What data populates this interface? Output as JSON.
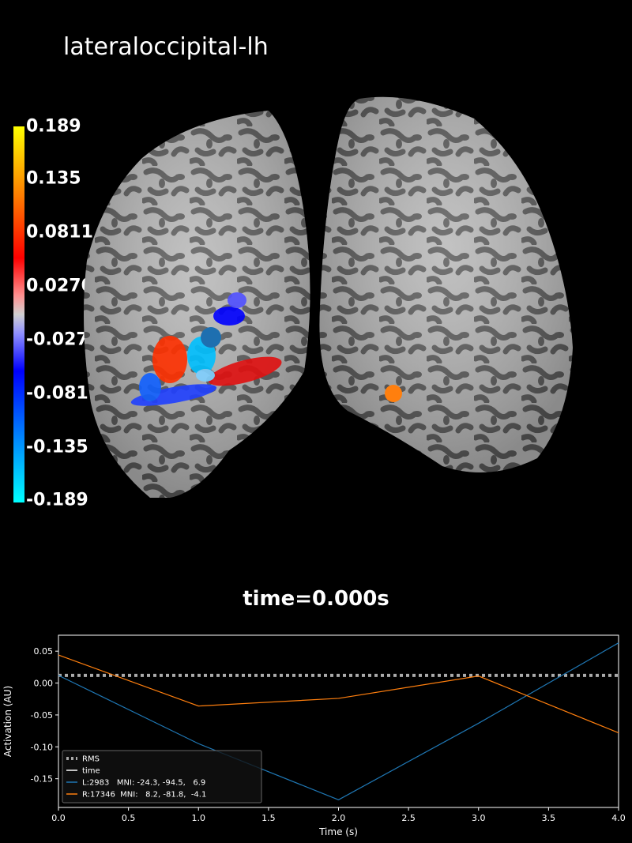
{
  "header": {
    "title": "lateraloccipital-lh"
  },
  "colorbar": {
    "ticks": [
      "0.189",
      "0.135",
      "0.0811",
      "0.0270",
      "-0.0270",
      "-0.0811",
      "-0.135",
      "-0.189"
    ]
  },
  "viewer": {
    "time_label": "time=0.000s"
  },
  "chart_data": {
    "type": "line",
    "xlabel": "Time (s)",
    "ylabel": "Activation (AU)",
    "xlim": [
      0.0,
      4.0
    ],
    "ylim": [
      -0.195,
      0.075
    ],
    "x_ticks": [
      "0.0",
      "0.5",
      "1.0",
      "1.5",
      "2.0",
      "2.5",
      "3.0",
      "3.5",
      "4.0"
    ],
    "y_ticks": [
      "0.05",
      "0.00",
      "-0.05",
      "-0.10",
      "-0.15"
    ],
    "series": [
      {
        "name": "RMS",
        "style": "dotted",
        "color": "#aaaaaa",
        "x": [
          0,
          4
        ],
        "y": [
          0.012,
          0.012
        ]
      },
      {
        "name": "time",
        "style": "solid",
        "color": "#ffffff",
        "x": [],
        "y": []
      },
      {
        "name": "L:2983   MNI: -24.3, -94.5,   6.9",
        "style": "solid",
        "color": "#1f77b4",
        "x": [
          0,
          1,
          2,
          3,
          4
        ],
        "y": [
          0.012,
          -0.095,
          -0.183,
          -0.063,
          0.063
        ]
      },
      {
        "name": "R:17346  MNI:   8.2, -81.8,  -4.1",
        "style": "solid",
        "color": "#ff7f0e",
        "x": [
          0,
          1,
          2,
          3,
          4
        ],
        "y": [
          0.044,
          -0.036,
          -0.024,
          0.011,
          -0.078
        ]
      }
    ],
    "legend": "lower-left",
    "grid": false
  }
}
